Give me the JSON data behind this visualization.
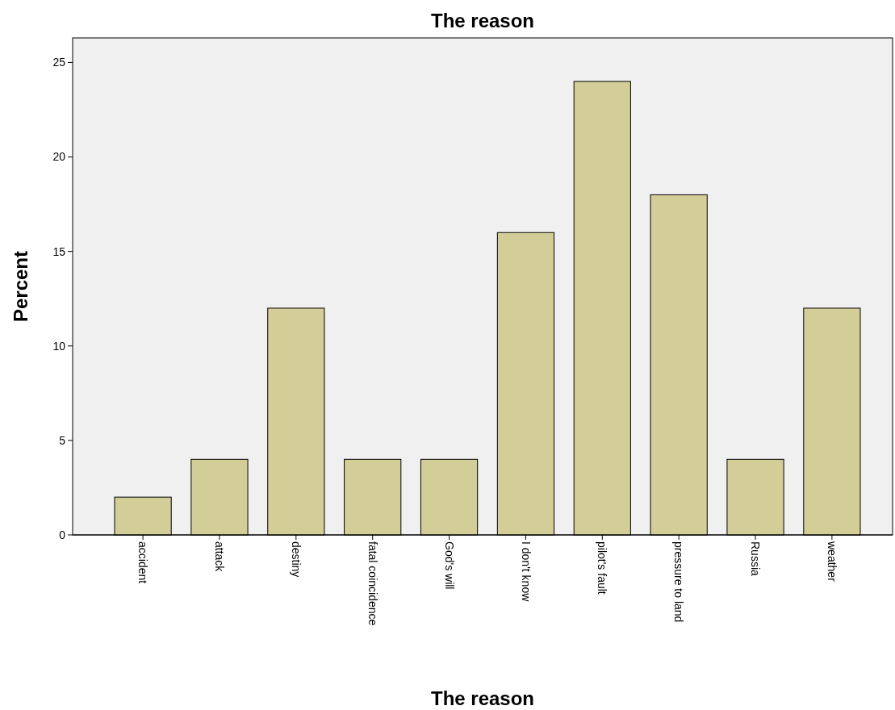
{
  "chart_data": {
    "type": "bar",
    "title": "The reason",
    "xlabel": "The reason",
    "ylabel": "Percent",
    "categories": [
      "accident",
      "attack",
      "destiny",
      "fatal coincidence",
      "God's will",
      "I don't know",
      "pilot's fault",
      "pressure to land",
      "Russia",
      "weather"
    ],
    "values": [
      2,
      4,
      12,
      4,
      4,
      16,
      24,
      18,
      4,
      12
    ],
    "color": "#d3ce97",
    "ylim": [
      0,
      26.3
    ],
    "yticks": [
      0,
      5,
      10,
      15,
      20,
      25
    ],
    "grid": false
  }
}
